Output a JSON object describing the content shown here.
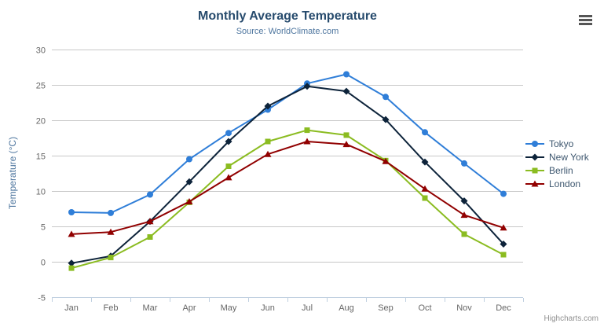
{
  "chart_data": {
    "type": "line",
    "title": "Monthly Average Temperature",
    "subtitle": "Source: WorldClimate.com",
    "xlabel": "",
    "ylabel": "Temperature (°C)",
    "categories": [
      "Jan",
      "Feb",
      "Mar",
      "Apr",
      "May",
      "Jun",
      "Jul",
      "Aug",
      "Sep",
      "Oct",
      "Nov",
      "Dec"
    ],
    "ylim": [
      -5,
      30
    ],
    "y_ticks": [
      -5,
      0,
      5,
      10,
      15,
      20,
      25,
      30
    ],
    "grid": true,
    "legend_position": "right",
    "series": [
      {
        "name": "Tokyo",
        "color": "#2f7ed8",
        "marker": "circle",
        "values": [
          7.0,
          6.9,
          9.5,
          14.5,
          18.2,
          21.5,
          25.2,
          26.5,
          23.3,
          18.3,
          13.9,
          9.6
        ]
      },
      {
        "name": "New York",
        "color": "#0d233a",
        "marker": "diamond",
        "values": [
          -0.2,
          0.8,
          5.7,
          11.3,
          17.0,
          22.0,
          24.8,
          24.1,
          20.1,
          14.1,
          8.6,
          2.5
        ]
      },
      {
        "name": "Berlin",
        "color": "#8bbc21",
        "marker": "square",
        "values": [
          -0.9,
          0.6,
          3.5,
          8.4,
          13.5,
          17.0,
          18.6,
          17.9,
          14.3,
          9.0,
          3.9,
          1.0
        ]
      },
      {
        "name": "London",
        "color": "#910000",
        "marker": "triangle",
        "values": [
          3.9,
          4.2,
          5.7,
          8.5,
          11.9,
          15.2,
          17.0,
          16.6,
          14.2,
          10.3,
          6.6,
          4.8
        ]
      }
    ]
  },
  "credits": {
    "label": "Highcharts.com"
  },
  "icons": {
    "context_menu": "hamburger-icon"
  },
  "colors": {
    "title": "#274b6d",
    "subtitle": "#4d759e",
    "axis_title": "#4d759e",
    "tick_label": "#666666",
    "gridline": "#c8c8c8",
    "axis_line": "#c0d0e0",
    "legend_text": "#3e576f",
    "credits_text": "#909090"
  }
}
